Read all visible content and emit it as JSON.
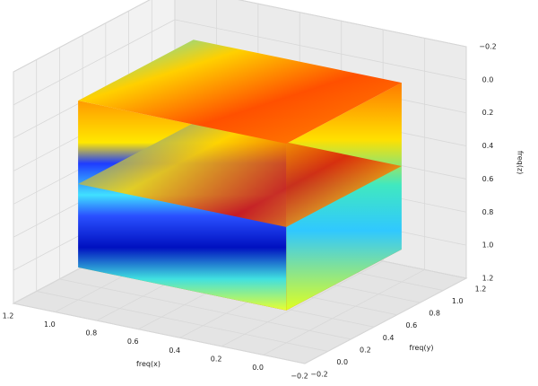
{
  "chart_data": {
    "type": "surface3d",
    "xlabel": "freq(x)",
    "ylabel": "freq(y)",
    "zlabel": "freq(z)",
    "xlim": [
      -0.2,
      1.2
    ],
    "ylim": [
      -0.2,
      1.2
    ],
    "zlim": [
      -0.2,
      1.2
    ],
    "z_inverted": true,
    "grid": true,
    "xticks": [
      {
        "value": -0.2,
        "label": "−0.2"
      },
      {
        "value": 0,
        "label": "0.0"
      },
      0.2,
      0.4,
      0.6,
      0.8,
      {
        "value": 1,
        "label": "1.0"
      },
      1.2
    ],
    "yticks": [
      {
        "value": -0.2,
        "label": "−0.2"
      },
      {
        "value": 0,
        "label": "0.0"
      },
      0.2,
      0.4,
      0.6,
      0.8,
      {
        "value": 1,
        "label": "1.0"
      },
      1.2
    ],
    "zticks": [
      {
        "value": -0.2,
        "label": "−0.2"
      },
      {
        "value": 0,
        "label": "0.0"
      },
      0.2,
      0.4,
      0.6,
      0.8,
      {
        "value": 1,
        "label": "1.0"
      },
      1.2
    ]
  }
}
